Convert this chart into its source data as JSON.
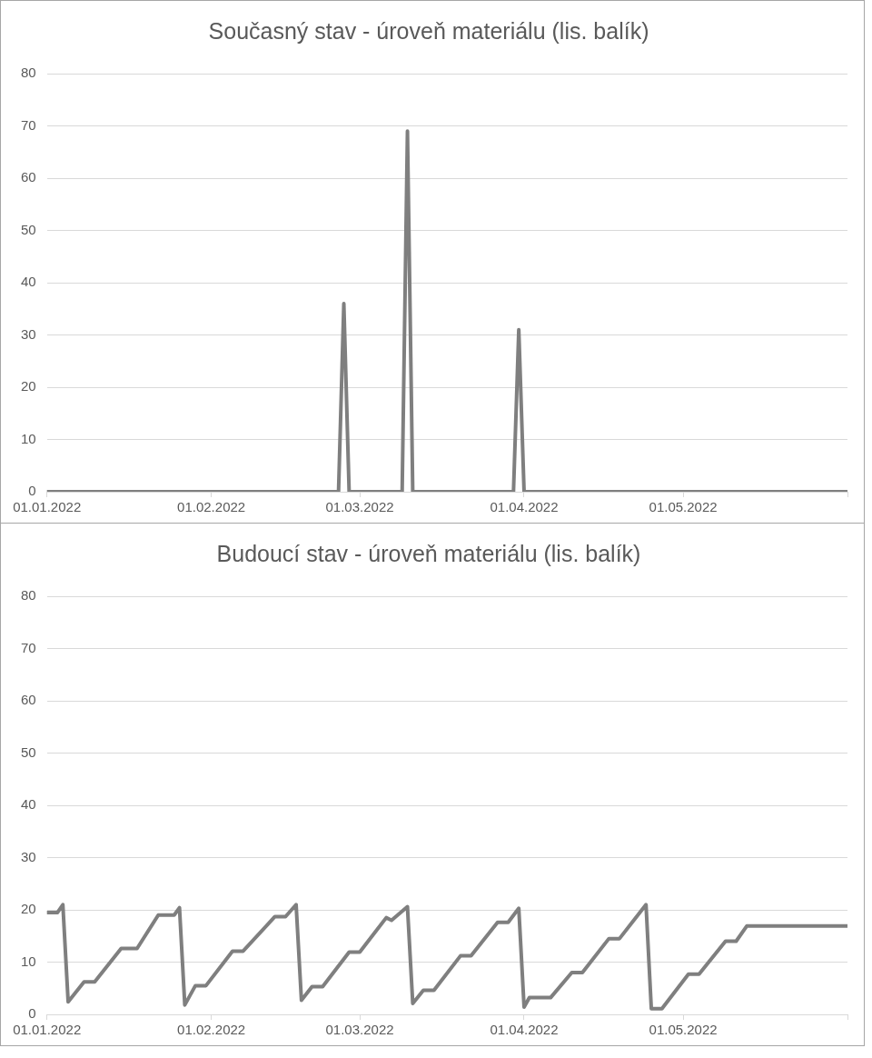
{
  "chart_data": [
    {
      "type": "line",
      "title": "Současný stav - úroveň materiálu (lis. balík)",
      "x": [
        "2022-01-01",
        "2022-02-25",
        "2022-02-26",
        "2022-02-27",
        "2022-03-09",
        "2022-03-10",
        "2022-03-11",
        "2022-03-30",
        "2022-03-31",
        "2022-04-01",
        "2022-06-01"
      ],
      "series": [
        {
          "color": "#7f7f7f",
          "values": [
            0,
            0,
            36,
            0,
            0,
            69,
            0,
            0,
            31,
            0,
            0
          ]
        }
      ],
      "xlim": [
        "2022-01-01",
        "2022-06-01"
      ],
      "xticks": [
        {
          "value": "2022-01-01",
          "label": "01.01.2022"
        },
        {
          "value": "2022-02-01",
          "label": "01.02.2022"
        },
        {
          "value": "2022-03-01",
          "label": "01.03.2022"
        },
        {
          "value": "2022-04-01",
          "label": "01.04.2022"
        },
        {
          "value": "2022-05-01",
          "label": "01.05.2022"
        },
        {
          "value": "2022-06-01",
          "label": null
        }
      ],
      "ylim": [
        0,
        80
      ],
      "yticks": [
        0,
        10,
        20,
        30,
        40,
        50,
        60,
        70,
        80
      ],
      "grid": "y",
      "legend": false
    },
    {
      "type": "line",
      "title": "Budoucí stav - úroveň materiálu (lis. balík)",
      "x": [
        "2022-01-01",
        "2022-01-03",
        "2022-01-04",
        "2022-01-05",
        "2022-01-08",
        "2022-01-10",
        "2022-01-15",
        "2022-01-18",
        "2022-01-22",
        "2022-01-25",
        "2022-01-26",
        "2022-01-27",
        "2022-01-29",
        "2022-01-31",
        "2022-02-05",
        "2022-02-07",
        "2022-02-13",
        "2022-02-15",
        "2022-02-17",
        "2022-02-18",
        "2022-02-20",
        "2022-02-22",
        "2022-02-27",
        "2022-03-01",
        "2022-03-06",
        "2022-03-07",
        "2022-03-10",
        "2022-03-11",
        "2022-03-13",
        "2022-03-15",
        "2022-03-20",
        "2022-03-22",
        "2022-03-27",
        "2022-03-29",
        "2022-03-31",
        "2022-04-01",
        "2022-04-02",
        "2022-04-06",
        "2022-04-10",
        "2022-04-12",
        "2022-04-17",
        "2022-04-19",
        "2022-04-24",
        "2022-04-25",
        "2022-04-27",
        "2022-05-02",
        "2022-05-04",
        "2022-05-09",
        "2022-05-11",
        "2022-05-13",
        "2022-06-01"
      ],
      "series": [
        {
          "color": "#7f7f7f",
          "values": [
            19.5,
            19.5,
            21,
            2.4,
            6.2,
            6.2,
            12.6,
            12.6,
            19,
            19,
            20.4,
            1.8,
            5.5,
            5.5,
            12.1,
            12.1,
            18.7,
            18.7,
            21,
            2.7,
            5.3,
            5.3,
            11.9,
            11.9,
            18.5,
            18,
            20.6,
            2.1,
            4.6,
            4.6,
            11.2,
            11.2,
            17.6,
            17.6,
            20.3,
            1.4,
            3.2,
            3.2,
            8,
            8,
            14.5,
            14.5,
            21,
            1.1,
            1.1,
            7.7,
            7.7,
            14,
            14,
            16.9,
            16.9
          ]
        }
      ],
      "xlim": [
        "2022-01-01",
        "2022-06-01"
      ],
      "xticks": [
        {
          "value": "2022-01-01",
          "label": "01.01.2022"
        },
        {
          "value": "2022-02-01",
          "label": "01.02.2022"
        },
        {
          "value": "2022-03-01",
          "label": "01.03.2022"
        },
        {
          "value": "2022-04-01",
          "label": "01.04.2022"
        },
        {
          "value": "2022-05-01",
          "label": "01.05.2022"
        },
        {
          "value": "2022-06-01",
          "label": null
        }
      ],
      "ylim": [
        0,
        80
      ],
      "yticks": [
        0,
        10,
        20,
        30,
        40,
        50,
        60,
        70,
        80
      ],
      "grid": "y",
      "legend": false
    }
  ]
}
